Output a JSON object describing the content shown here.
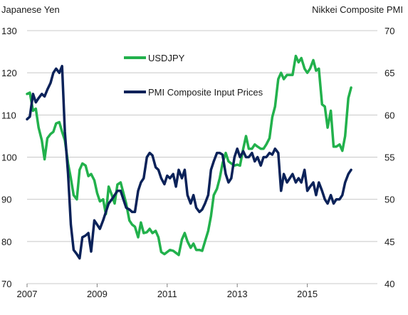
{
  "chart_data": {
    "type": "line",
    "left_axis_label": "Japanese Yen",
    "right_axis_label": "Nikkei Composite  PMI",
    "x_tick_labels": [
      "2007",
      "2009",
      "2011",
      "2013",
      "2015"
    ],
    "x_tick_values": [
      2007,
      2009,
      2011,
      2013,
      2015
    ],
    "xlim": [
      2007,
      2017
    ],
    "left_ylim": [
      70,
      130
    ],
    "left_yticks": [
      70,
      80,
      90,
      100,
      110,
      120,
      130
    ],
    "right_ylim": [
      40,
      70
    ],
    "right_yticks": [
      40,
      45,
      50,
      55,
      60,
      65,
      70
    ],
    "grid": "horizontal",
    "legend_placement": "top-center",
    "series": [
      {
        "name": "USDJPY",
        "axis": "left",
        "color": "#22b14c",
        "points": [
          [
            2007.0,
            115
          ],
          [
            2007.08,
            115.3
          ],
          [
            2007.17,
            111
          ],
          [
            2007.25,
            111.5
          ],
          [
            2007.33,
            107
          ],
          [
            2007.42,
            104
          ],
          [
            2007.5,
            99.5
          ],
          [
            2007.58,
            104.5
          ],
          [
            2007.67,
            105.5
          ],
          [
            2007.75,
            106
          ],
          [
            2007.83,
            108
          ],
          [
            2007.92,
            108.3
          ],
          [
            2008.0,
            106
          ],
          [
            2008.08,
            104
          ],
          [
            2008.17,
            98.5
          ],
          [
            2008.25,
            95
          ],
          [
            2008.33,
            91
          ],
          [
            2008.42,
            90
          ],
          [
            2008.5,
            97
          ],
          [
            2008.58,
            98.5
          ],
          [
            2008.67,
            98
          ],
          [
            2008.75,
            95.5
          ],
          [
            2008.83,
            96
          ],
          [
            2008.92,
            94.5
          ],
          [
            2009.0,
            91.5
          ],
          [
            2009.08,
            89.5
          ],
          [
            2009.17,
            90
          ],
          [
            2009.25,
            86.5
          ],
          [
            2009.33,
            93
          ],
          [
            2009.42,
            91
          ],
          [
            2009.5,
            89
          ],
          [
            2009.58,
            93.5
          ],
          [
            2009.67,
            94
          ],
          [
            2009.75,
            91.5
          ],
          [
            2009.83,
            89
          ],
          [
            2009.92,
            85
          ],
          [
            2010.0,
            84
          ],
          [
            2010.08,
            83.5
          ],
          [
            2010.17,
            81
          ],
          [
            2010.25,
            84.5
          ],
          [
            2010.33,
            82
          ],
          [
            2010.42,
            82.2
          ],
          [
            2010.5,
            83
          ],
          [
            2010.58,
            82
          ],
          [
            2010.67,
            82.5
          ],
          [
            2010.75,
            81
          ],
          [
            2010.83,
            77.5
          ],
          [
            2010.92,
            77
          ],
          [
            2011.0,
            77.5
          ],
          [
            2011.08,
            78
          ],
          [
            2011.17,
            77.8
          ],
          [
            2011.25,
            77.3
          ],
          [
            2011.33,
            76.8
          ],
          [
            2011.42,
            80.5
          ],
          [
            2011.5,
            82
          ],
          [
            2011.58,
            80
          ],
          [
            2011.67,
            78.5
          ],
          [
            2011.75,
            79.5
          ],
          [
            2011.83,
            78
          ],
          [
            2011.92,
            78
          ],
          [
            2012.0,
            77.8
          ],
          [
            2012.08,
            80
          ],
          [
            2012.17,
            82.5
          ],
          [
            2012.25,
            86
          ],
          [
            2012.33,
            91
          ],
          [
            2012.42,
            92.5
          ],
          [
            2012.5,
            95
          ],
          [
            2012.58,
            98.5
          ],
          [
            2012.67,
            101
          ],
          [
            2012.75,
            99
          ],
          [
            2012.83,
            98.5
          ],
          [
            2012.92,
            98
          ],
          [
            2013.0,
            98.2
          ],
          [
            2013.08,
            98
          ],
          [
            2013.17,
            102
          ],
          [
            2013.25,
            105
          ],
          [
            2013.33,
            102
          ],
          [
            2013.42,
            102
          ],
          [
            2013.5,
            103
          ],
          [
            2013.58,
            102.5
          ],
          [
            2013.67,
            102
          ],
          [
            2013.75,
            102
          ],
          [
            2013.83,
            103
          ],
          [
            2013.92,
            104.5
          ],
          [
            2014.0,
            109.5
          ],
          [
            2014.08,
            112
          ],
          [
            2014.17,
            118.5
          ],
          [
            2014.25,
            120
          ],
          [
            2014.33,
            118.5
          ],
          [
            2014.42,
            119.5
          ],
          [
            2014.5,
            119.5
          ],
          [
            2014.58,
            119.5
          ],
          [
            2014.67,
            124
          ],
          [
            2014.75,
            122.5
          ],
          [
            2014.83,
            123.5
          ],
          [
            2014.92,
            121
          ],
          [
            2015.0,
            120
          ],
          [
            2015.08,
            121
          ],
          [
            2015.17,
            123
          ],
          [
            2015.25,
            120.5
          ],
          [
            2015.33,
            121
          ],
          [
            2015.42,
            112.5
          ],
          [
            2015.5,
            112
          ],
          [
            2015.58,
            107
          ],
          [
            2015.67,
            111
          ],
          [
            2015.75,
            102.5
          ],
          [
            2015.83,
            102.5
          ],
          [
            2015.92,
            103
          ],
          [
            2016.0,
            101.5
          ],
          [
            2016.08,
            105
          ],
          [
            2016.17,
            114
          ],
          [
            2016.25,
            116.5
          ]
        ]
      },
      {
        "name": "PMI Composite Input Prices",
        "axis": "right",
        "color": "#0b2259",
        "points": [
          [
            2007.0,
            59.5
          ],
          [
            2007.08,
            59.8
          ],
          [
            2007.17,
            62.5
          ],
          [
            2007.25,
            61.5
          ],
          [
            2007.33,
            62
          ],
          [
            2007.42,
            62.5
          ],
          [
            2007.5,
            62.2
          ],
          [
            2007.58,
            63
          ],
          [
            2007.67,
            63.8
          ],
          [
            2007.75,
            65
          ],
          [
            2007.83,
            65.5
          ],
          [
            2007.92,
            65
          ],
          [
            2008.0,
            65.8
          ],
          [
            2008.08,
            58
          ],
          [
            2008.17,
            53
          ],
          [
            2008.25,
            47
          ],
          [
            2008.33,
            44
          ],
          [
            2008.42,
            43.5
          ],
          [
            2008.5,
            43
          ],
          [
            2008.58,
            45.5
          ],
          [
            2008.67,
            45.7
          ],
          [
            2008.75,
            46
          ],
          [
            2008.83,
            43.8
          ],
          [
            2008.92,
            47.5
          ],
          [
            2009.0,
            47
          ],
          [
            2009.08,
            46.5
          ],
          [
            2009.17,
            47.5
          ],
          [
            2009.25,
            48.5
          ],
          [
            2009.33,
            49.5
          ],
          [
            2009.42,
            50
          ],
          [
            2009.5,
            50.5
          ],
          [
            2009.58,
            51
          ],
          [
            2009.67,
            51
          ],
          [
            2009.75,
            50
          ],
          [
            2009.83,
            49
          ],
          [
            2009.92,
            48.8
          ],
          [
            2010.0,
            48.5
          ],
          [
            2010.08,
            48.5
          ],
          [
            2010.17,
            51
          ],
          [
            2010.25,
            52
          ],
          [
            2010.33,
            52.5
          ],
          [
            2010.42,
            55
          ],
          [
            2010.5,
            55.5
          ],
          [
            2010.58,
            55.2
          ],
          [
            2010.67,
            53.8
          ],
          [
            2010.75,
            53.5
          ],
          [
            2010.83,
            52.5
          ],
          [
            2010.92,
            51.8
          ],
          [
            2011.0,
            52.8
          ],
          [
            2011.08,
            52.5
          ],
          [
            2011.17,
            53
          ],
          [
            2011.25,
            51.5
          ],
          [
            2011.33,
            53.5
          ],
          [
            2011.42,
            52.5
          ],
          [
            2011.5,
            53.5
          ],
          [
            2011.58,
            50.5
          ],
          [
            2011.67,
            49.5
          ],
          [
            2011.75,
            50.5
          ],
          [
            2011.83,
            49
          ],
          [
            2011.92,
            48.5
          ],
          [
            2012.0,
            48.8
          ],
          [
            2012.08,
            49.5
          ],
          [
            2012.17,
            50.5
          ],
          [
            2012.25,
            53.5
          ],
          [
            2012.33,
            54.5
          ],
          [
            2012.42,
            55.5
          ],
          [
            2012.5,
            55.5
          ],
          [
            2012.58,
            55.3
          ],
          [
            2012.67,
            53
          ],
          [
            2012.75,
            52
          ],
          [
            2012.83,
            52.5
          ],
          [
            2012.92,
            55
          ],
          [
            2013.0,
            56
          ],
          [
            2013.08,
            55
          ],
          [
            2013.17,
            55.7
          ],
          [
            2013.25,
            55
          ],
          [
            2013.33,
            55
          ],
          [
            2013.42,
            55.5
          ],
          [
            2013.5,
            54.5
          ],
          [
            2013.58,
            55
          ],
          [
            2013.67,
            54
          ],
          [
            2013.75,
            55
          ],
          [
            2013.83,
            55
          ],
          [
            2013.92,
            55.5
          ],
          [
            2014.0,
            55.3
          ],
          [
            2014.08,
            56
          ],
          [
            2014.17,
            55.5
          ],
          [
            2014.25,
            51
          ],
          [
            2014.33,
            53
          ],
          [
            2014.42,
            52
          ],
          [
            2014.5,
            52.5
          ],
          [
            2014.58,
            53
          ],
          [
            2014.67,
            52
          ],
          [
            2014.75,
            52.5
          ],
          [
            2014.83,
            52
          ],
          [
            2014.92,
            53.5
          ],
          [
            2015.0,
            51
          ],
          [
            2015.08,
            51.5
          ],
          [
            2015.17,
            52
          ],
          [
            2015.25,
            50.5
          ],
          [
            2015.33,
            52
          ],
          [
            2015.42,
            51
          ],
          [
            2015.5,
            50
          ],
          [
            2015.58,
            49.5
          ],
          [
            2015.67,
            50.5
          ],
          [
            2015.75,
            49.5
          ],
          [
            2015.83,
            50
          ],
          [
            2015.92,
            50
          ],
          [
            2016.0,
            50.5
          ],
          [
            2016.08,
            52
          ],
          [
            2016.17,
            53
          ],
          [
            2016.25,
            53.5
          ]
        ]
      }
    ]
  }
}
